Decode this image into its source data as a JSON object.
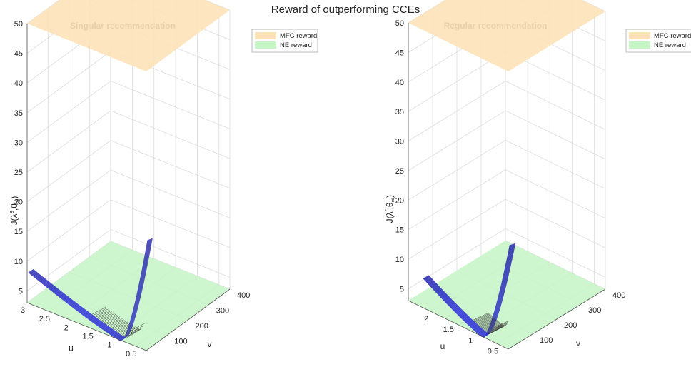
{
  "figure": {
    "title": "Reward of outperforming CCEs"
  },
  "chart_data": [
    {
      "type": "surface3d",
      "title": "Singular recommendation",
      "xlabel": "u",
      "ylabel": "v",
      "zlabel": "J(λ^s, θ_∞)",
      "zlabel_main": "J(λ",
      "zlabel_sup": "s",
      "zlabel_mid": ",θ",
      "zlabel_sub": "∞",
      "zlabel_end": ")",
      "xlim": [
        0.25,
        3
      ],
      "ylim": [
        0,
        400
      ],
      "zlim": [
        3,
        50
      ],
      "xticks": [
        "0.5",
        "1",
        "1.5",
        "2",
        "2.5",
        "3"
      ],
      "xtick_values": [
        0.5,
        1,
        1.5,
        2,
        2.5,
        3
      ],
      "yticks": [
        "100",
        "200",
        "300",
        "400"
      ],
      "ytick_values": [
        100,
        200,
        300,
        400
      ],
      "zticks": [
        "5",
        "10",
        "15",
        "20",
        "25",
        "30",
        "35",
        "40",
        "45",
        "50"
      ],
      "ztick_values": [
        5,
        10,
        15,
        20,
        25,
        30,
        35,
        40,
        45,
        50
      ],
      "mfc_reward": 50,
      "ne_reward": 3,
      "surface_u_max": 3,
      "surface_peak": 21.5,
      "surface_color": "#2b2bd6",
      "mfc_color": "#fde2b8",
      "ne_color": "#c6f5c6",
      "legend": [
        "MFC reward",
        "NE reward"
      ],
      "legend_position": "top-right"
    },
    {
      "type": "surface3d",
      "title": "Regular recommendation",
      "xlabel": "u",
      "ylabel": "v",
      "zlabel": "J(λ^r, θ_∞)",
      "zlabel_main": "J(λ",
      "zlabel_sup": "r",
      "zlabel_mid": ",θ",
      "zlabel_sub": "∞",
      "zlabel_end": ")",
      "xlim": [
        0.25,
        2.5
      ],
      "ylim": [
        0,
        400
      ],
      "zlim": [
        3,
        50
      ],
      "xticks": [
        "0.5",
        "1",
        "1.5",
        "2"
      ],
      "xtick_values": [
        0.5,
        1,
        1.5,
        2
      ],
      "yticks": [
        "100",
        "200",
        "300",
        "400"
      ],
      "ytick_values": [
        100,
        200,
        300,
        400
      ],
      "zticks": [
        "5",
        "10",
        "15",
        "20",
        "25",
        "30",
        "35",
        "40",
        "45",
        "50"
      ],
      "ztick_values": [
        5,
        10,
        15,
        20,
        25,
        30,
        35,
        40,
        45,
        50
      ],
      "mfc_reward": 50,
      "ne_reward": 3,
      "surface_u_max": 2.2,
      "surface_peak": 20.5,
      "surface_color": "#2b2bd6",
      "mfc_color": "#fde2b8",
      "ne_color": "#c6f5c6",
      "legend": [
        "MFC reward",
        "NE reward"
      ],
      "legend_position": "top-right"
    }
  ]
}
